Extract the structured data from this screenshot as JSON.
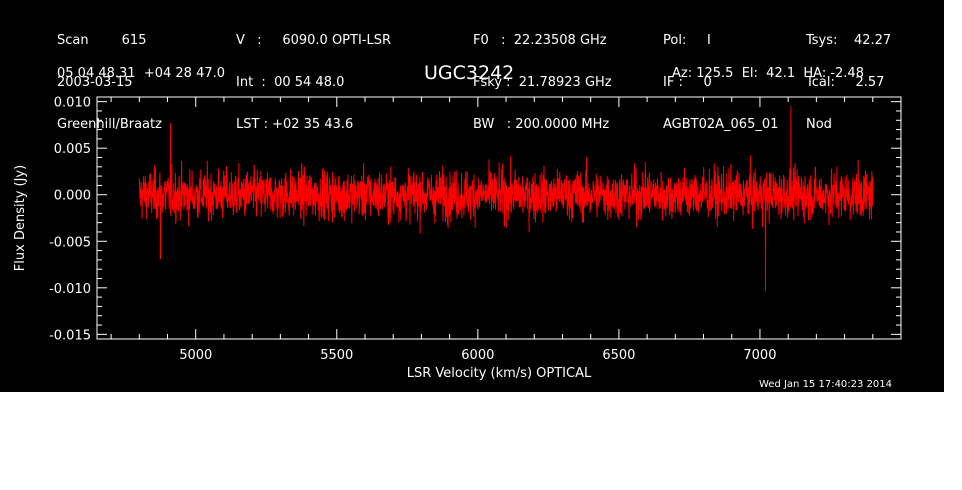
{
  "header": {
    "col1": [
      "Scan        615",
      "2003-03-15",
      "Greenhill/Braatz"
    ],
    "col2": [
      "V   :     6090.0 OPTI-LSR",
      "Int  :  00 54 48.0",
      "LST : +02 35 43.6"
    ],
    "col3": [
      "F0   :  22.23508 GHz",
      "Fsky :  21.78923 GHz",
      "BW   : 200.0000 MHz"
    ],
    "col4": [
      "Pol:     I",
      "IF :     0",
      "AGBT02A_065_01"
    ],
    "col5": [
      "Tsys:    42.27",
      "Tcal:     2.57",
      "Nod"
    ],
    "coords": "05 04 48.31  +04 28 47.0",
    "source": "UGC3242",
    "azelha": "Az: 125.5  El:  42.1  HA: -2.48",
    "timestamp": "Wed Jan 15 17:40:23 2014"
  },
  "chart_data": {
    "type": "line",
    "title": "UGC3242",
    "xlabel": "LSR Velocity (km/s) OPTICAL",
    "ylabel": "Flux Density (Jy)",
    "xlim": [
      4650,
      7500
    ],
    "ylim": [
      -0.0155,
      0.0105
    ],
    "x_range": [
      4800,
      7400
    ],
    "xticks": [
      5000,
      5500,
      6000,
      6500,
      7000
    ],
    "yticks": [
      -0.015,
      -0.01,
      -0.005,
      0.0,
      0.005,
      0.01
    ],
    "ytick_labels": [
      "-0.015",
      "-0.010",
      "-0.005",
      "0.000",
      "0.005",
      "0.010"
    ],
    "series_color": "#ff0000",
    "noise_sigma": 0.0022,
    "peaks": [
      {
        "x": 7110,
        "y": 0.0095
      },
      {
        "x": 7020,
        "y": -0.0103
      },
      {
        "x": 4910,
        "y": 0.0077
      },
      {
        "x": 4875,
        "y": -0.0069
      }
    ],
    "axis_color": "#ffffff",
    "background": "#000000",
    "grid": false
  }
}
